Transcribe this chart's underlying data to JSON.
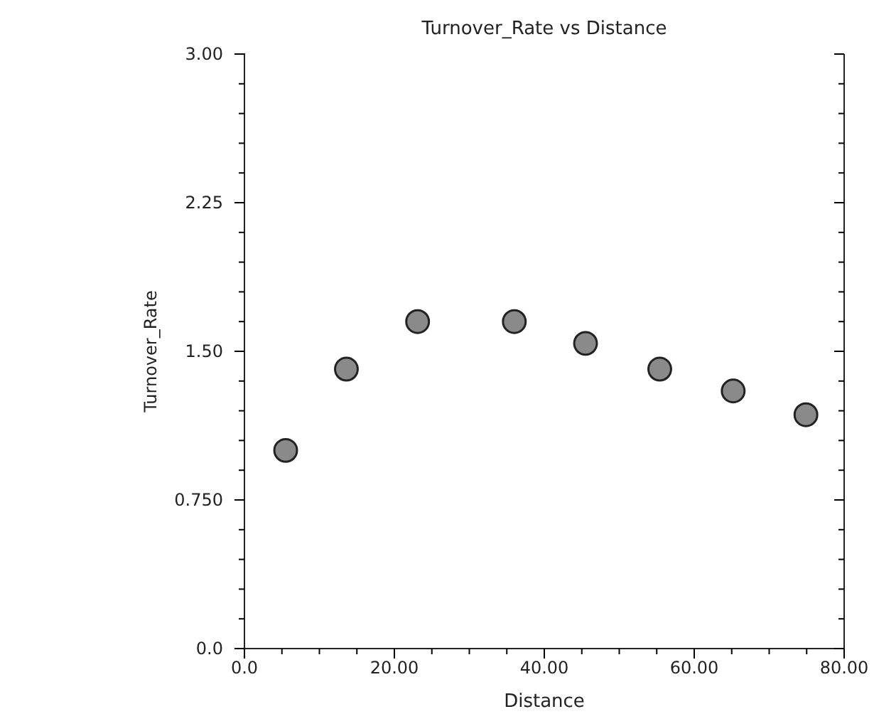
{
  "chart_data": {
    "type": "scatter",
    "title": "Turnover_Rate vs Distance",
    "xlabel": "Distance",
    "ylabel": "Turnover_Rate",
    "x": [
      5.5,
      13.6,
      23.1,
      36.0,
      45.5,
      55.4,
      65.2,
      74.9
    ],
    "series": [
      {
        "color": "#8a8a8a",
        "values": [
          1.0,
          1.41,
          1.65,
          1.65,
          1.54,
          1.41,
          1.3,
          1.18
        ]
      }
    ],
    "xlim": [
      0,
      80
    ],
    "xticks": [
      {
        "value": 0,
        "label": "0.0"
      },
      {
        "value": 5,
        "label": null
      },
      {
        "value": 10,
        "label": null
      },
      {
        "value": 15,
        "label": null
      },
      {
        "value": 20,
        "label": "20.00"
      },
      {
        "value": 25,
        "label": null
      },
      {
        "value": 30,
        "label": null
      },
      {
        "value": 35,
        "label": null
      },
      {
        "value": 40,
        "label": "40.00"
      },
      {
        "value": 45,
        "label": null
      },
      {
        "value": 50,
        "label": null
      },
      {
        "value": 55,
        "label": null
      },
      {
        "value": 60,
        "label": "60.00"
      },
      {
        "value": 65,
        "label": null
      },
      {
        "value": 70,
        "label": null
      },
      {
        "value": 75,
        "label": null
      },
      {
        "value": 80,
        "label": "80.00"
      }
    ],
    "ylim": [
      0,
      3
    ],
    "yticks": [
      {
        "value": 0,
        "label": "0.0"
      },
      {
        "value": 0.15,
        "label": null
      },
      {
        "value": 0.3,
        "label": null
      },
      {
        "value": 0.45,
        "label": null
      },
      {
        "value": 0.6,
        "label": null
      },
      {
        "value": 0.75,
        "label": "0.750"
      },
      {
        "value": 0.9,
        "label": null
      },
      {
        "value": 1.05,
        "label": null
      },
      {
        "value": 1.2,
        "label": null
      },
      {
        "value": 1.35,
        "label": null
      },
      {
        "value": 1.5,
        "label": "1.50"
      },
      {
        "value": 1.65,
        "label": null
      },
      {
        "value": 1.8,
        "label": null
      },
      {
        "value": 1.95,
        "label": null
      },
      {
        "value": 2.1,
        "label": null
      },
      {
        "value": 2.25,
        "label": "2.25"
      },
      {
        "value": 2.4,
        "label": null
      },
      {
        "value": 2.55,
        "label": null
      },
      {
        "value": 2.7,
        "label": null
      },
      {
        "value": 2.85,
        "label": null
      },
      {
        "value": 3,
        "label": "3.00"
      }
    ],
    "marker": "circle",
    "grid": false
  }
}
